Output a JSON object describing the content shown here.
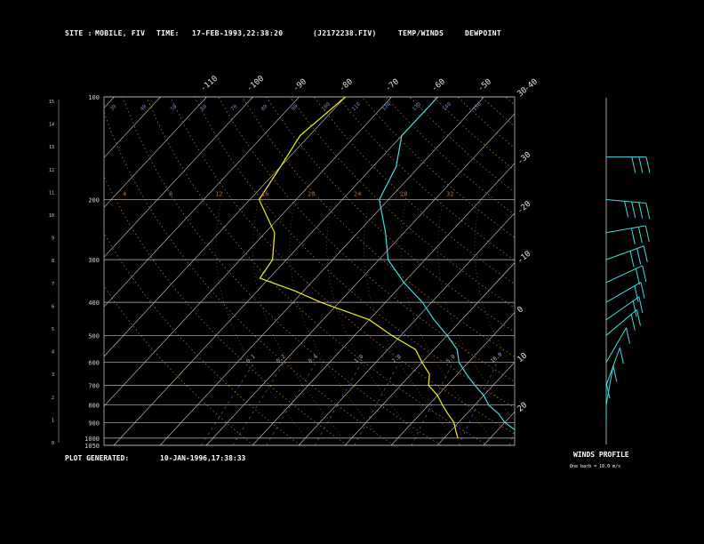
{
  "header": {
    "site_label": "SITE :",
    "site_value": "MOBILE, FIV",
    "time_label": "TIME:",
    "time_value": "17-FEB-1993,22:38:20",
    "file_value": "(J2172238.FIV)",
    "temp_legend": "TEMP/WINDS",
    "dew_legend": "DEWPOINT",
    "temp_color": "#3fe0e0",
    "dew_color": "#f0f020"
  },
  "footer": {
    "generated_label": "PLOT GENERATED:",
    "generated_value": "10-JAN-1996,17:38:33",
    "wind_title": "WINDS PROFILE",
    "wind_note": "One barb = 10.0 m/s"
  },
  "chart_data": {
    "type": "line",
    "subtype": "skew-T log-p sounding",
    "pressure_levels": [
      100,
      200,
      300,
      400,
      500,
      600,
      700,
      800,
      900,
      1000,
      1050
    ],
    "pressure_tick_labels": [
      "100",
      "200",
      "300",
      "400",
      "500",
      "600",
      "700",
      "800",
      "900",
      "1000",
      "1050"
    ],
    "height_tick_labels": [
      "15",
      "14",
      "13",
      "12",
      "11",
      "10",
      "9",
      "8",
      "7",
      "6",
      "5",
      "4",
      "3",
      "2",
      "1",
      "0"
    ],
    "skewed_temp_top_labels": [
      "-110",
      "-100",
      "-90",
      "-80",
      "-70",
      "-60",
      "-50",
      "-40"
    ],
    "skewed_temp_right_labels": [
      "-30",
      "-20",
      "-10",
      "0",
      "10",
      "20",
      "30"
    ],
    "temperature_unit": "C",
    "series": [
      {
        "name": "TEMP/WINDS",
        "color": "#3fe0e0",
        "points": [
          [
            100,
            -60
          ],
          [
            130,
            -60
          ],
          [
            160,
            -55
          ],
          [
            200,
            -52
          ],
          [
            250,
            -44
          ],
          [
            300,
            -38
          ],
          [
            350,
            -30
          ],
          [
            400,
            -22
          ],
          [
            450,
            -16
          ],
          [
            500,
            -10
          ],
          [
            550,
            -5
          ],
          [
            600,
            -2
          ],
          [
            650,
            2
          ],
          [
            700,
            6
          ],
          [
            750,
            10
          ],
          [
            800,
            13
          ],
          [
            850,
            17
          ],
          [
            900,
            20
          ],
          [
            950,
            24
          ],
          [
            1000,
            26
          ]
        ]
      },
      {
        "name": "DEWPOINT",
        "color": "#f0f020",
        "points": [
          [
            100,
            -80
          ],
          [
            130,
            -82
          ],
          [
            160,
            -80
          ],
          [
            200,
            -78
          ],
          [
            250,
            -68
          ],
          [
            300,
            -63
          ],
          [
            340,
            -62
          ],
          [
            370,
            -52
          ],
          [
            400,
            -44
          ],
          [
            450,
            -30
          ],
          [
            500,
            -22
          ],
          [
            550,
            -14
          ],
          [
            600,
            -10
          ],
          [
            650,
            -6
          ],
          [
            700,
            -4
          ],
          [
            750,
            0
          ],
          [
            800,
            3
          ],
          [
            850,
            6
          ],
          [
            900,
            9
          ],
          [
            950,
            11
          ],
          [
            1000,
            13
          ]
        ]
      }
    ],
    "mixing_ratio_labels": [
      "0.1",
      "0.2",
      "0.4",
      "1.0",
      "2.0",
      "5.0",
      "10.0",
      "20.0"
    ],
    "dry_adiabat_labels": [
      "30",
      "40",
      "50",
      "60",
      "70",
      "80",
      "90",
      "100",
      "110",
      "120",
      "130",
      "140",
      "150"
    ],
    "moist_adiabat_labels": [
      "4",
      "8",
      "12",
      "16",
      "20",
      "24",
      "28",
      "32"
    ],
    "winds_profile": {
      "barb_unit_ms": 10.0,
      "levels": [
        {
          "pressure": 150,
          "dir": 270,
          "barbs": 3
        },
        {
          "pressure": 200,
          "dir": 275,
          "barbs": 4
        },
        {
          "pressure": 250,
          "dir": 260,
          "barbs": 3
        },
        {
          "pressure": 300,
          "dir": 250,
          "barbs": 3
        },
        {
          "pressure": 350,
          "dir": 245,
          "barbs": 2
        },
        {
          "pressure": 400,
          "dir": 240,
          "barbs": 2
        },
        {
          "pressure": 450,
          "dir": 235,
          "barbs": 2
        },
        {
          "pressure": 500,
          "dir": 230,
          "barbs": 2
        },
        {
          "pressure": 600,
          "dir": 210,
          "barbs": 1
        },
        {
          "pressure": 700,
          "dir": 200,
          "barbs": 1
        },
        {
          "pressure": 800,
          "dir": 190,
          "barbs": 1
        },
        {
          "pressure": 900,
          "dir": 180,
          "barbs": 1
        }
      ]
    }
  }
}
